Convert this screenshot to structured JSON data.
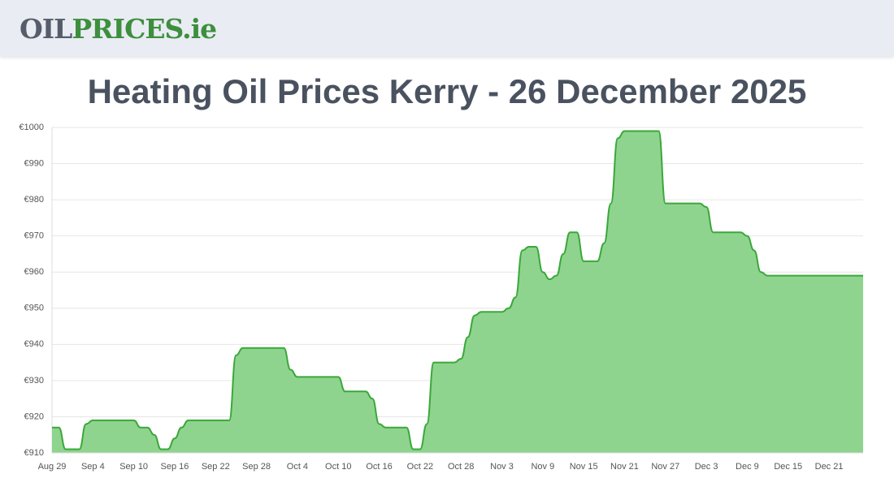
{
  "header": {
    "logo": [
      "OIL",
      "PRICES.ie"
    ]
  },
  "chart_data": {
    "type": "area",
    "title": "Heating Oil Prices Kerry - 26 December 2025",
    "categories": [
      "Aug 29",
      null,
      null,
      null,
      null,
      null,
      "Sep 4",
      null,
      null,
      null,
      null,
      null,
      "Sep 10",
      null,
      null,
      null,
      null,
      null,
      "Sep 16",
      null,
      null,
      null,
      null,
      null,
      "Sep 22",
      null,
      null,
      null,
      null,
      null,
      "Sep 28",
      null,
      null,
      null,
      null,
      null,
      "Oct 4",
      null,
      null,
      null,
      null,
      null,
      "Oct 10",
      null,
      null,
      null,
      null,
      null,
      "Oct 16",
      null,
      null,
      null,
      null,
      null,
      "Oct 22",
      null,
      null,
      null,
      null,
      null,
      "Oct 28",
      null,
      null,
      null,
      null,
      null,
      "Nov 3",
      null,
      null,
      null,
      null,
      null,
      "Nov 9",
      null,
      null,
      null,
      null,
      null,
      "Nov 15",
      null,
      null,
      null,
      null,
      null,
      "Nov 21",
      null,
      null,
      null,
      null,
      null,
      "Nov 27",
      null,
      null,
      null,
      null,
      null,
      "Dec 3",
      null,
      null,
      null,
      null,
      null,
      "Dec 9",
      null,
      null,
      null,
      null,
      null,
      "Dec 15",
      null,
      null,
      null,
      null,
      null,
      "Dec 21",
      null,
      null,
      null,
      null,
      null
    ],
    "values": [
      917,
      917,
      911,
      911,
      911,
      918,
      919,
      919,
      919,
      919,
      919,
      919,
      919,
      917,
      917,
      915,
      911,
      911,
      914,
      917,
      919,
      919,
      919,
      919,
      919,
      919,
      919,
      937,
      939,
      939,
      939,
      939,
      939,
      939,
      939,
      933,
      931,
      931,
      931,
      931,
      931,
      931,
      931,
      927,
      927,
      927,
      927,
      925,
      918,
      917,
      917,
      917,
      917,
      911,
      911,
      918,
      935,
      935,
      935,
      935,
      936,
      942,
      948,
      949,
      949,
      949,
      949,
      950,
      953,
      966,
      967,
      967,
      960,
      958,
      959,
      965,
      971,
      971,
      963,
      963,
      963,
      968,
      979,
      997,
      999,
      999,
      999,
      999,
      999,
      999,
      979,
      979,
      979,
      979,
      979,
      979,
      978,
      971,
      971,
      971,
      971,
      971,
      970,
      966,
      960,
      959,
      959,
      959,
      959,
      959,
      959,
      959,
      959,
      959,
      959,
      959,
      959,
      959,
      959,
      959
    ],
    "color": "#3aa83a",
    "fill": "#8fd48e",
    "ylim": [
      910,
      1000
    ],
    "yticks": [
      {
        "value": 910,
        "label": "€910"
      },
      {
        "value": 920,
        "label": "€920"
      },
      {
        "value": 930,
        "label": "€930"
      },
      {
        "value": 940,
        "label": "€940"
      },
      {
        "value": 950,
        "label": "€950"
      },
      {
        "value": 960,
        "label": "€960"
      },
      {
        "value": 970,
        "label": "€970"
      },
      {
        "value": 980,
        "label": "€980"
      },
      {
        "value": 990,
        "label": "€990"
      },
      {
        "value": 1000,
        "label": "€1000"
      }
    ],
    "grid": true
  }
}
